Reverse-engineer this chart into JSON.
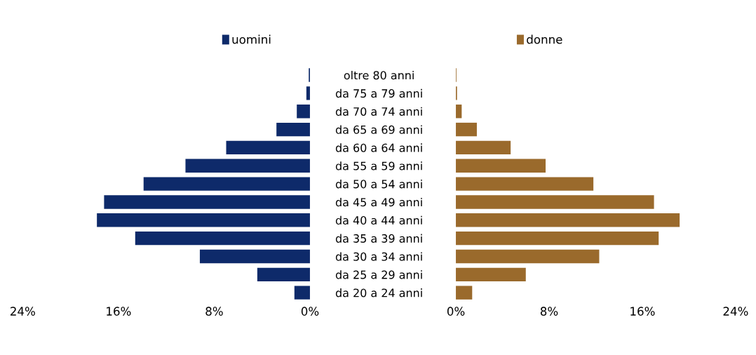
{
  "chart_data": [
    {
      "type": "bar",
      "orientation": "horizontal",
      "categories": [
        "oltre 80 anni",
        "da 75 a 79 anni",
        "da 70 a 74 anni",
        "da 65 a 69 anni",
        "da 60 a 64 anni",
        "da 55 a 59 anni",
        "da 50 a 54 anni",
        "da 45 a 49 anni",
        "da 40 a 44 anni",
        "da 35 a 39 anni",
        "da 30 a 34 anni",
        "da 25 a 29 anni",
        "da 20 a 24 anni"
      ],
      "series": [
        {
          "name": "uomini",
          "color": "#0e2a6a",
          "values": [
            0.1,
            0.3,
            1.1,
            2.8,
            7.0,
            10.4,
            13.9,
            17.2,
            17.8,
            14.6,
            9.2,
            4.4,
            1.3
          ]
        }
      ],
      "xlim": [
        24,
        0
      ],
      "xticks": [
        {
          "value": 24,
          "label": "24%"
        },
        {
          "value": 16,
          "label": "16%"
        },
        {
          "value": 8,
          "label": "8%"
        },
        {
          "value": 0,
          "label": "0%"
        }
      ],
      "legend": "top",
      "grid": false
    },
    {
      "type": "bar",
      "orientation": "horizontal",
      "categories": [
        null,
        null,
        null,
        null,
        null,
        null,
        null,
        null,
        null,
        null,
        null,
        null,
        null
      ],
      "series": [
        {
          "name": "donne",
          "color": "#9a6a2c",
          "values": [
            0.05,
            0.1,
            0.5,
            1.8,
            4.7,
            7.7,
            11.8,
            17.0,
            19.2,
            17.4,
            12.3,
            6.0,
            1.4
          ]
        }
      ],
      "xlim": [
        0,
        24
      ],
      "xticks": [
        {
          "value": 0,
          "label": "0%"
        },
        {
          "value": 8,
          "label": "8%"
        },
        {
          "value": 16,
          "label": "16%"
        },
        {
          "value": 24,
          "label": "24%"
        }
      ],
      "legend": "top",
      "grid": false
    }
  ]
}
